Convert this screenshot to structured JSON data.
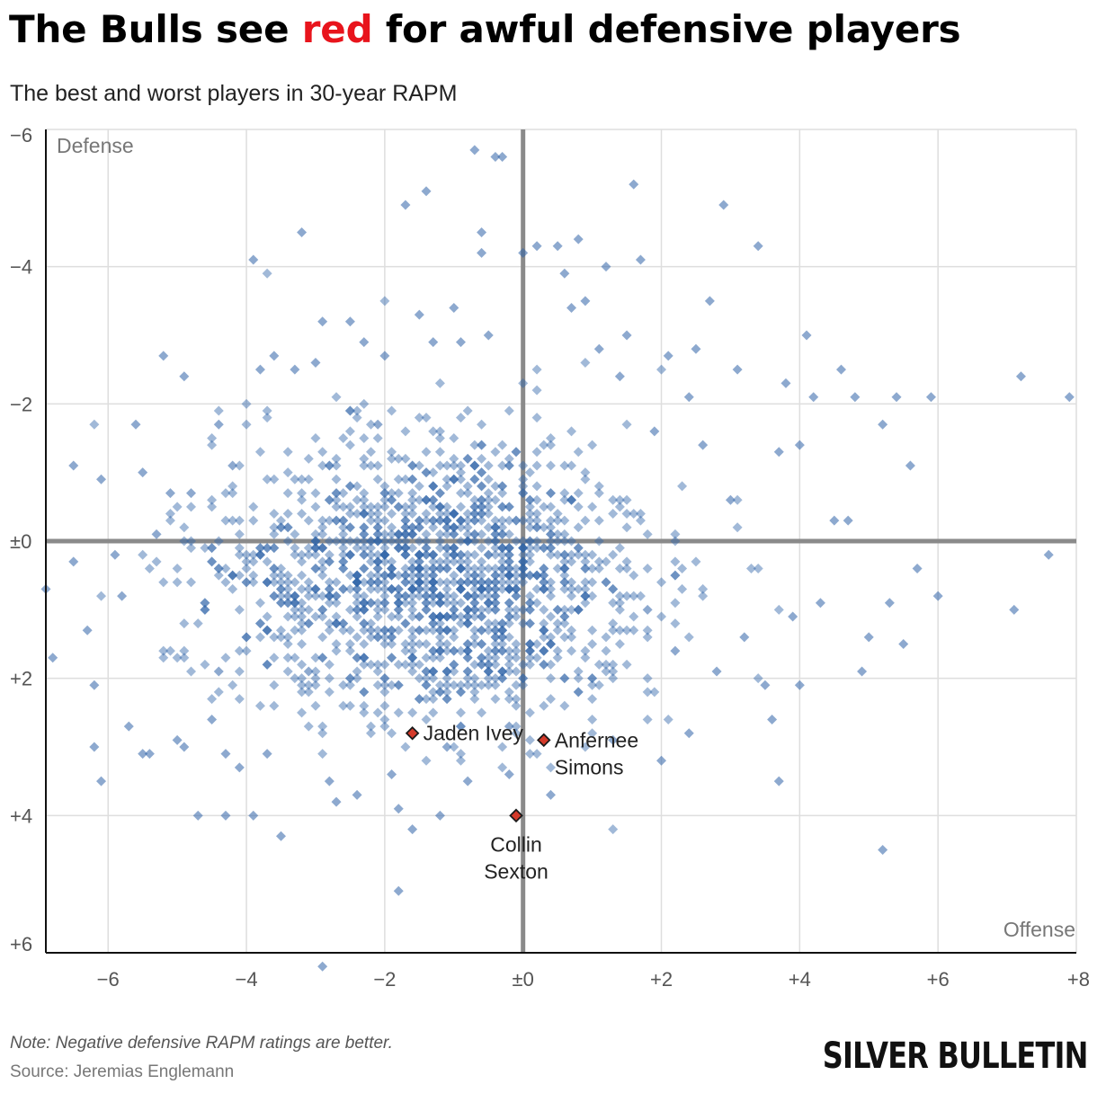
{
  "header": {
    "title_before": "The Bulls see ",
    "title_highlight": "red",
    "title_after": " for awful defensive players",
    "subtitle": "The best and worst players in 30-year RAPM"
  },
  "footer": {
    "note": "Note: Negative defensive RAPM ratings are better.",
    "source": "Source: Jeremias Englemann",
    "brand": "SILVER BULLETIN"
  },
  "colors": {
    "point": "#2f63a8",
    "highlight": "#d43a2a",
    "zero_line": "#8a8a8a",
    "grid": "#dedede",
    "title_highlight": "#e8141c"
  },
  "chart_data": {
    "type": "scatter",
    "xlabel": "Offense",
    "ylabel": "Defense",
    "xlim": [
      -6.9,
      8
    ],
    "ylim": [
      -6,
      6
    ],
    "y_inverted": true,
    "x_ticks": [
      -6,
      -4,
      -2,
      0,
      2,
      4,
      6,
      8
    ],
    "x_tick_labels": [
      "−6",
      "−4",
      "−2",
      "±0",
      "+2",
      "+4",
      "+6",
      "+8"
    ],
    "y_ticks": [
      -6,
      -4,
      -2,
      0,
      2,
      4,
      6
    ],
    "y_tick_labels": [
      "−6",
      "−4",
      "−2",
      "±0",
      "+2",
      "+4",
      "+6"
    ],
    "grid": true,
    "highlighted": [
      {
        "name": "Jaden Ivey",
        "x": -1.6,
        "y": 2.8
      },
      {
        "name": "Anfernee Simons",
        "x": 0.3,
        "y": 2.9
      },
      {
        "name": "Collin Sexton",
        "x": -0.1,
        "y": 4.0
      }
    ],
    "series": [
      {
        "points": [
          [
            -6.9,
            0.7
          ],
          [
            -6.8,
            1.7
          ],
          [
            -6.5,
            -1.1
          ],
          [
            -6.5,
            0.3
          ],
          [
            -6.3,
            1.3
          ],
          [
            -6.2,
            2.1
          ],
          [
            -6.2,
            3.0
          ],
          [
            -6.1,
            3.5
          ],
          [
            -6.1,
            -0.9
          ],
          [
            -5.9,
            0.2
          ],
          [
            -5.8,
            0.8
          ],
          [
            -5.7,
            2.7
          ],
          [
            -5.6,
            -1.7
          ],
          [
            -5.5,
            -1.0
          ],
          [
            -5.5,
            3.1
          ],
          [
            -5.4,
            3.1
          ],
          [
            -5.3,
            -0.1
          ],
          [
            -5.2,
            -2.7
          ],
          [
            -5.1,
            -0.7
          ],
          [
            -5.0,
            2.9
          ],
          [
            -4.9,
            -2.4
          ],
          [
            -4.9,
            3.0
          ],
          [
            -4.8,
            -0.7
          ],
          [
            -4.7,
            4.0
          ],
          [
            -4.6,
            1.0
          ],
          [
            -4.5,
            2.6
          ],
          [
            -4.4,
            -1.7
          ],
          [
            -4.4,
            1.9
          ],
          [
            -4.3,
            3.1
          ],
          [
            -4.3,
            4.0
          ],
          [
            -4.2,
            -1.1
          ],
          [
            -4.1,
            3.3
          ],
          [
            -4.0,
            1.4
          ],
          [
            -3.9,
            -4.1
          ],
          [
            -3.9,
            4.0
          ],
          [
            -3.8,
            -2.5
          ],
          [
            -3.7,
            1.8
          ],
          [
            -3.7,
            3.1
          ],
          [
            -3.6,
            -2.7
          ],
          [
            -3.5,
            4.3
          ],
          [
            -3.4,
            0.8
          ],
          [
            -3.3,
            -2.5
          ],
          [
            -3.2,
            -4.5
          ],
          [
            -3.1,
            1.9
          ],
          [
            -3.0,
            -2.6
          ],
          [
            -2.9,
            -3.2
          ],
          [
            -2.9,
            6.2
          ],
          [
            -2.8,
            3.5
          ],
          [
            -2.7,
            3.8
          ],
          [
            -2.5,
            -3.2
          ],
          [
            -2.4,
            3.7
          ],
          [
            -2.3,
            -2.9
          ],
          [
            -2.2,
            1.3
          ],
          [
            -2.1,
            -1.7
          ],
          [
            -2.0,
            -2.7
          ],
          [
            -1.9,
            3.4
          ],
          [
            -1.8,
            5.1
          ],
          [
            -1.8,
            3.9
          ],
          [
            -1.7,
            -4.9
          ],
          [
            -1.6,
            4.2
          ],
          [
            -1.5,
            -3.3
          ],
          [
            -1.4,
            -5.1
          ],
          [
            -1.3,
            -2.9
          ],
          [
            -1.2,
            4.0
          ],
          [
            -1.1,
            3.0
          ],
          [
            -1.0,
            -3.4
          ],
          [
            -0.9,
            -2.9
          ],
          [
            -0.8,
            3.5
          ],
          [
            -0.7,
            -5.7
          ],
          [
            -0.6,
            -4.5
          ],
          [
            -0.6,
            -4.2
          ],
          [
            -0.5,
            -3.0
          ],
          [
            -0.4,
            -5.6
          ],
          [
            -0.3,
            -5.6
          ],
          [
            -0.2,
            3.4
          ],
          [
            -0.2,
            2.7
          ],
          [
            0.0,
            -4.2
          ],
          [
            0.2,
            -4.3
          ],
          [
            0.4,
            3.7
          ],
          [
            0.5,
            -4.3
          ],
          [
            0.6,
            -3.9
          ],
          [
            0.7,
            -3.4
          ],
          [
            0.8,
            -4.4
          ],
          [
            0.9,
            -3.5
          ],
          [
            1.1,
            -2.8
          ],
          [
            1.2,
            -4.0
          ],
          [
            1.3,
            2.9
          ],
          [
            1.4,
            -2.4
          ],
          [
            1.5,
            -3.0
          ],
          [
            1.6,
            -5.2
          ],
          [
            1.7,
            -4.1
          ],
          [
            1.8,
            1.0
          ],
          [
            1.9,
            -1.6
          ],
          [
            2.0,
            3.2
          ],
          [
            2.1,
            -2.7
          ],
          [
            2.2,
            1.6
          ],
          [
            2.4,
            -2.1
          ],
          [
            2.4,
            2.8
          ],
          [
            2.5,
            -2.8
          ],
          [
            2.6,
            -1.4
          ],
          [
            2.7,
            -3.5
          ],
          [
            2.8,
            1.9
          ],
          [
            2.9,
            -4.9
          ],
          [
            3.0,
            -0.6
          ],
          [
            3.1,
            -2.5
          ],
          [
            3.2,
            1.4
          ],
          [
            3.4,
            -4.3
          ],
          [
            3.5,
            2.1
          ],
          [
            3.6,
            2.6
          ],
          [
            3.7,
            -1.3
          ],
          [
            3.7,
            3.5
          ],
          [
            3.8,
            -2.3
          ],
          [
            3.9,
            1.1
          ],
          [
            4.0,
            -1.4
          ],
          [
            4.0,
            2.1
          ],
          [
            4.1,
            -3.0
          ],
          [
            4.2,
            -2.1
          ],
          [
            4.3,
            0.9
          ],
          [
            4.5,
            -0.3
          ],
          [
            4.6,
            -2.5
          ],
          [
            4.7,
            -0.3
          ],
          [
            4.8,
            -2.1
          ],
          [
            4.9,
            1.9
          ],
          [
            5.0,
            1.4
          ],
          [
            5.2,
            4.5
          ],
          [
            5.2,
            -1.7
          ],
          [
            5.3,
            0.9
          ],
          [
            5.4,
            -2.1
          ],
          [
            5.5,
            1.5
          ],
          [
            5.6,
            -1.1
          ],
          [
            5.7,
            0.4
          ],
          [
            5.9,
            -2.1
          ],
          [
            6.0,
            0.8
          ],
          [
            7.1,
            1.0
          ],
          [
            7.2,
            -2.4
          ],
          [
            7.6,
            0.2
          ],
          [
            7.9,
            -2.1
          ]
        ]
      }
    ]
  }
}
